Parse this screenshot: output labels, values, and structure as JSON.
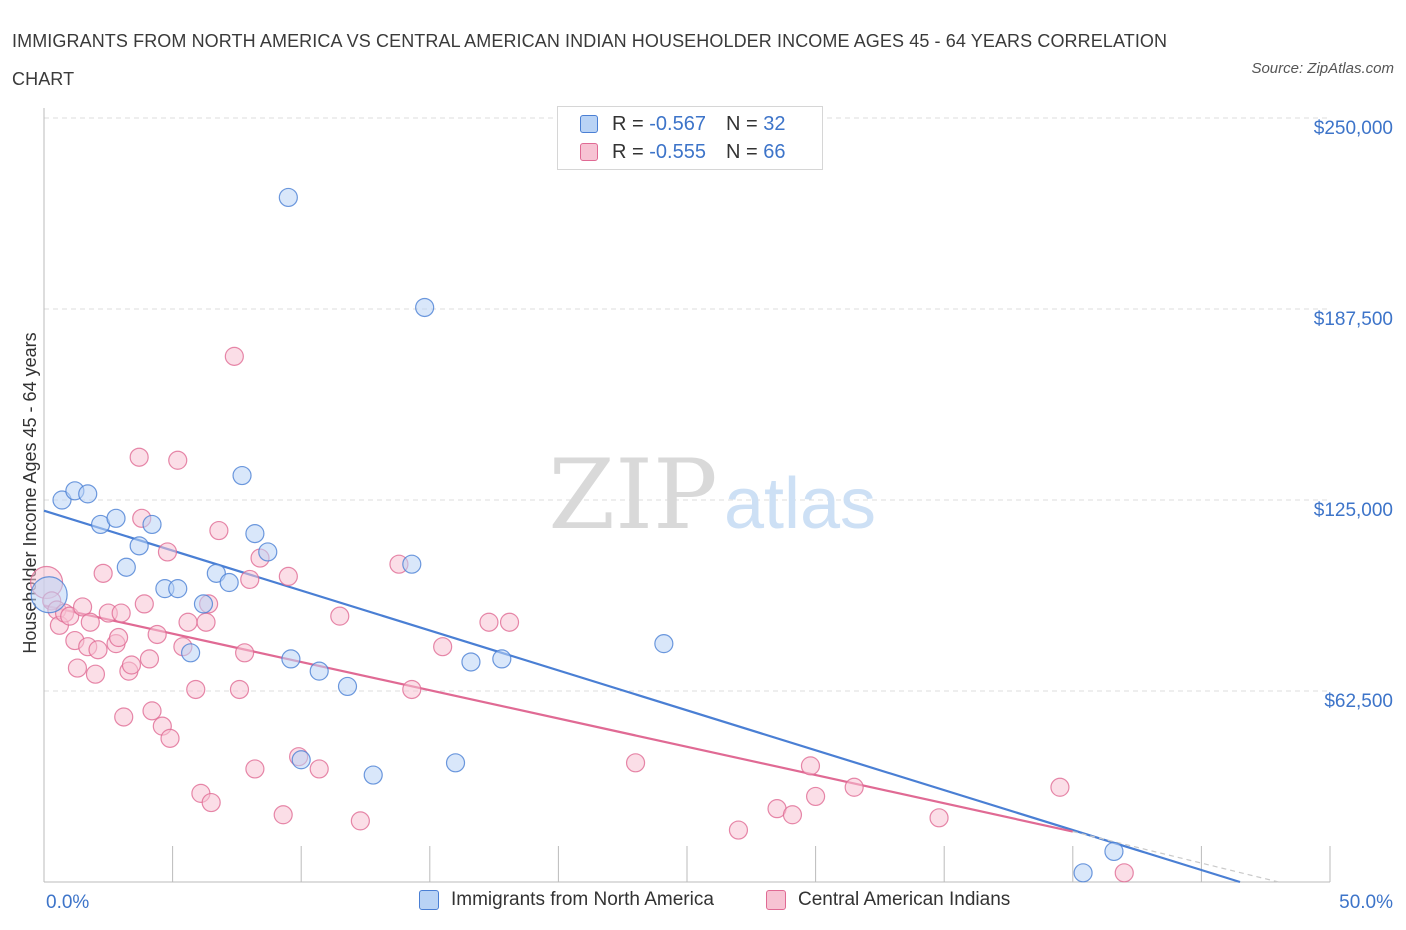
{
  "title": "IMMIGRANTS FROM NORTH AMERICA VS CENTRAL AMERICAN INDIAN HOUSEHOLDER INCOME AGES 45 - 64 YEARS CORRELATION CHART",
  "source": "Source: ZipAtlas.com",
  "watermark": {
    "zip": "ZIP",
    "atlas": "atlas"
  },
  "colors": {
    "blue": "#4a7fd4",
    "blue_fill": "#b9d3f5",
    "pink": "#e06a94",
    "pink_fill": "#f7c3d3",
    "axis_text": "#3d74c9",
    "grid": "#dcdcdc"
  },
  "legend_top": [
    {
      "r_label": "R = ",
      "r_value": "-0.567",
      "n_label": "N = ",
      "n_value": "32",
      "color": "blue"
    },
    {
      "r_label": "R = ",
      "r_value": "-0.555",
      "n_label": "N = ",
      "n_value": "66",
      "color": "pink"
    }
  ],
  "legend_bottom": [
    {
      "label": "Immigrants from North America",
      "color": "blue"
    },
    {
      "label": "Central American Indians",
      "color": "pink"
    }
  ],
  "chart_data": {
    "type": "scatter",
    "title": "IMMIGRANTS FROM NORTH AMERICA VS CENTRAL AMERICAN INDIAN HOUSEHOLDER INCOME AGES 45 - 64 YEARS CORRELATION CHART",
    "xlabel": "",
    "ylabel": "Householder Income Ages 45 - 64 years",
    "xlim": [
      0,
      50
    ],
    "ylim": [
      0,
      250000
    ],
    "x_tick_labels": [
      "0.0%",
      "50.0%"
    ],
    "y_ticks": [
      62500,
      125000,
      187500,
      250000
    ],
    "y_tick_labels": [
      "$62,500",
      "$125,000",
      "$187,500",
      "$250,000"
    ],
    "grid": true,
    "legend": "bottom",
    "series": [
      {
        "name": "Immigrants from North America",
        "color": "blue",
        "points": [
          [
            0.2,
            94000
          ],
          [
            0.7,
            125000
          ],
          [
            1.2,
            128000
          ],
          [
            1.7,
            127000
          ],
          [
            2.2,
            117000
          ],
          [
            2.8,
            119000
          ],
          [
            3.2,
            103000
          ],
          [
            3.7,
            110000
          ],
          [
            4.2,
            117000
          ],
          [
            4.7,
            96000
          ],
          [
            5.2,
            96000
          ],
          [
            5.7,
            75000
          ],
          [
            6.2,
            91000
          ],
          [
            6.7,
            101000
          ],
          [
            7.2,
            98000
          ],
          [
            7.7,
            133000
          ],
          [
            8.2,
            114000
          ],
          [
            8.7,
            108000
          ],
          [
            9.5,
            224000
          ],
          [
            9.6,
            73000
          ],
          [
            10.0,
            40000
          ],
          [
            10.7,
            69000
          ],
          [
            11.8,
            64000
          ],
          [
            12.8,
            35000
          ],
          [
            14.3,
            104000
          ],
          [
            14.8,
            188000
          ],
          [
            16.0,
            39000
          ],
          [
            16.6,
            72000
          ],
          [
            17.8,
            73000
          ],
          [
            24.1,
            78000
          ],
          [
            41.6,
            10000
          ],
          [
            40.4,
            3000
          ]
        ],
        "trend": [
          [
            0,
            121500
          ],
          [
            46.5,
            0
          ]
        ]
      },
      {
        "name": "Central American Indians",
        "color": "pink",
        "points": [
          [
            0.1,
            98000
          ],
          [
            0.3,
            92000
          ],
          [
            0.5,
            89000
          ],
          [
            0.6,
            84000
          ],
          [
            0.8,
            88000
          ],
          [
            1.0,
            87000
          ],
          [
            1.2,
            79000
          ],
          [
            1.3,
            70000
          ],
          [
            1.5,
            90000
          ],
          [
            1.7,
            77000
          ],
          [
            1.8,
            85000
          ],
          [
            2.0,
            68000
          ],
          [
            2.1,
            76000
          ],
          [
            2.3,
            101000
          ],
          [
            2.5,
            88000
          ],
          [
            2.8,
            78000
          ],
          [
            2.9,
            80000
          ],
          [
            3.0,
            88000
          ],
          [
            3.1,
            54000
          ],
          [
            3.3,
            69000
          ],
          [
            3.4,
            71000
          ],
          [
            3.7,
            139000
          ],
          [
            3.8,
            119000
          ],
          [
            3.9,
            91000
          ],
          [
            4.1,
            73000
          ],
          [
            4.2,
            56000
          ],
          [
            4.4,
            81000
          ],
          [
            4.6,
            51000
          ],
          [
            4.8,
            108000
          ],
          [
            4.9,
            47000
          ],
          [
            5.2,
            138000
          ],
          [
            5.4,
            77000
          ],
          [
            5.6,
            85000
          ],
          [
            5.9,
            63000
          ],
          [
            6.1,
            29000
          ],
          [
            6.3,
            85000
          ],
          [
            6.4,
            91000
          ],
          [
            6.5,
            26000
          ],
          [
            6.8,
            115000
          ],
          [
            7.4,
            172000
          ],
          [
            7.6,
            63000
          ],
          [
            7.8,
            75000
          ],
          [
            8.0,
            99000
          ],
          [
            8.2,
            37000
          ],
          [
            8.4,
            106000
          ],
          [
            9.3,
            22000
          ],
          [
            9.5,
            100000
          ],
          [
            9.9,
            41000
          ],
          [
            10.7,
            37000
          ],
          [
            11.5,
            87000
          ],
          [
            12.3,
            20000
          ],
          [
            13.8,
            104000
          ],
          [
            14.3,
            63000
          ],
          [
            15.5,
            77000
          ],
          [
            17.3,
            85000
          ],
          [
            18.1,
            85000
          ],
          [
            23.0,
            39000
          ],
          [
            27.0,
            17000
          ],
          [
            28.5,
            24000
          ],
          [
            29.1,
            22000
          ],
          [
            29.8,
            38000
          ],
          [
            30.0,
            28000
          ],
          [
            31.5,
            31000
          ],
          [
            34.8,
            21000
          ],
          [
            39.5,
            31000
          ],
          [
            42.0,
            3000
          ]
        ],
        "trend": [
          [
            0,
            90500
          ],
          [
            40,
            16500
          ]
        ],
        "trend_dashed_extension": [
          [
            40,
            16500
          ],
          [
            48,
            0
          ]
        ]
      }
    ]
  }
}
